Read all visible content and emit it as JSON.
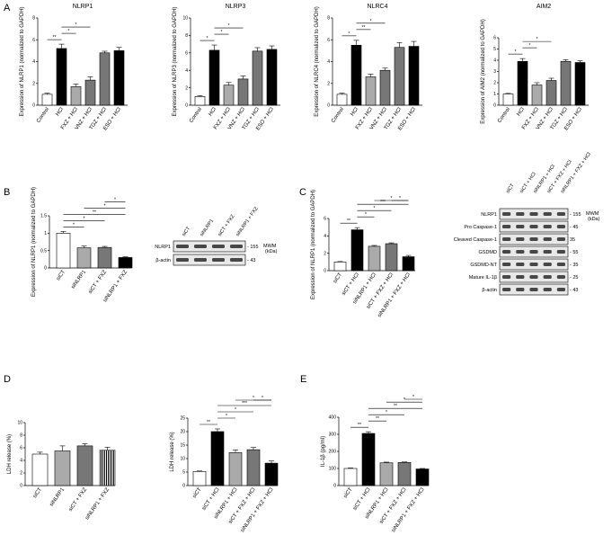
{
  "panels": {
    "A": "A",
    "B": "B",
    "C": "C",
    "D": "D",
    "E": "E"
  },
  "chart_data": [
    {
      "id": "A1",
      "type": "bar",
      "title": "NLRP1",
      "ylabel": "Expression of NLRP1 (normalized to GAPDH)",
      "ylim": [
        0,
        8
      ],
      "yticks": [
        0,
        2,
        4,
        6,
        8
      ],
      "categories": [
        "Control",
        "HCl",
        "FXZ + HCl",
        "VNZ + HCl",
        "TGZ + HCl",
        "ESO + HCl"
      ],
      "values": [
        1.0,
        5.2,
        1.7,
        2.3,
        4.8,
        5.0
      ],
      "errors": [
        0.1,
        0.4,
        0.25,
        0.3,
        0.15,
        0.3
      ],
      "significance": [
        [
          "Control",
          "HCl",
          "**"
        ],
        [
          "HCl",
          "FXZ + HCl",
          "*"
        ],
        [
          "HCl",
          "VNZ + HCl",
          "*"
        ]
      ]
    },
    {
      "id": "A2",
      "type": "bar",
      "title": "NLRP3",
      "ylabel": "Expression of NLRP3 (normalized to GAPDH)",
      "ylim": [
        0,
        10
      ],
      "yticks": [
        0,
        2,
        4,
        6,
        8,
        10
      ],
      "categories": [
        "Control",
        "HCl",
        "FXZ + HCl",
        "VNZ + HCl",
        "TGZ + HCl",
        "ESO + HCl"
      ],
      "values": [
        1.0,
        6.3,
        2.3,
        3.0,
        6.2,
        6.4
      ],
      "errors": [
        0.1,
        0.6,
        0.3,
        0.35,
        0.4,
        0.4
      ],
      "significance": [
        [
          "Control",
          "HCl",
          "*"
        ],
        [
          "HCl",
          "FXZ + HCl",
          "*"
        ],
        [
          "HCl",
          "VNZ + HCl",
          "*"
        ]
      ]
    },
    {
      "id": "A3",
      "type": "bar",
      "title": "NLRC4",
      "ylabel": "Expression of NLRC4 (normalized to GAPDH)",
      "ylim": [
        0,
        8
      ],
      "yticks": [
        0,
        2,
        4,
        6,
        8
      ],
      "categories": [
        "Control",
        "HCl",
        "FXZ + HCl",
        "VNZ + HCl",
        "TGZ + HCl",
        "ESO + HCl"
      ],
      "values": [
        1.0,
        5.5,
        2.6,
        3.2,
        5.3,
        5.4
      ],
      "errors": [
        0.1,
        0.45,
        0.25,
        0.2,
        0.45,
        0.45
      ],
      "significance": [
        [
          "Control",
          "HCl",
          "*"
        ],
        [
          "HCl",
          "FXZ + HCl",
          "**"
        ],
        [
          "HCl",
          "VNZ + HCl",
          "*"
        ]
      ]
    },
    {
      "id": "A4",
      "type": "bar",
      "title": "AIM2",
      "ylabel": "Expression of AIM2 (normalized to GAPDH)",
      "ylim": [
        0,
        6
      ],
      "yticks": [
        0,
        1,
        2,
        3,
        4,
        5,
        6
      ],
      "categories": [
        "Control",
        "HCl",
        "FXZ + HCl",
        "VNZ + HCl",
        "TGZ + HCl",
        "ESO + HCl"
      ],
      "values": [
        1.0,
        3.9,
        1.8,
        2.2,
        3.9,
        3.8
      ],
      "errors": [
        0.05,
        0.25,
        0.2,
        0.2,
        0.15,
        0.15
      ],
      "significance": [
        [
          "Control",
          "HCl",
          "*"
        ],
        [
          "HCl",
          "FXZ + HCl",
          "*"
        ],
        [
          "HCl",
          "VNZ + HCl",
          "*"
        ]
      ]
    },
    {
      "id": "B",
      "type": "bar",
      "title": "",
      "ylabel": "Expression of NLRP1 (normalized to GAPDH)",
      "ylim": [
        0,
        1.5
      ],
      "yticks": [
        0.0,
        0.5,
        1.0,
        1.5
      ],
      "categories": [
        "siCT",
        "siNLRP1",
        "siCT + FXZ",
        "siNLRP1 + FXZ"
      ],
      "values": [
        1.0,
        0.58,
        0.59,
        0.3
      ],
      "errors": [
        0.05,
        0.05,
        0.03,
        0.02
      ],
      "significance": [
        [
          "siCT",
          "siNLRP1",
          "*"
        ],
        [
          "siCT",
          "siCT + FXZ",
          "*"
        ],
        [
          "siCT",
          "siNLRP1 + FXZ",
          "**"
        ],
        [
          "siNLRP1",
          "siNLRP1 + FXZ",
          "*"
        ],
        [
          "siCT + FXZ",
          "siNLRP1 + FXZ",
          "*"
        ]
      ]
    },
    {
      "id": "C",
      "type": "bar",
      "title": "",
      "ylabel": "Expression of NLRP1 (normalized to GAPDH)",
      "ylim": [
        0,
        6
      ],
      "yticks": [
        0,
        2,
        4,
        6
      ],
      "categories": [
        "siCT",
        "siCT + HCl",
        "siNLRP1 + HCl",
        "siCT + FXZ + HCl",
        "siNLRP1 + FXZ + HCl"
      ],
      "values": [
        1.0,
        4.7,
        2.8,
        3.1,
        1.6
      ],
      "errors": [
        0.05,
        0.25,
        0.1,
        0.1,
        0.15
      ],
      "significance": [
        [
          "siCT",
          "siCT + HCl",
          "**"
        ],
        [
          "siCT + HCl",
          "siNLRP1 + HCl",
          "*"
        ],
        [
          "siCT + HCl",
          "siCT + FXZ + HCl",
          "*"
        ],
        [
          "siCT + HCl",
          "siNLRP1 + FXZ + HCl",
          "***"
        ],
        [
          "siNLRP1 + HCl",
          "siNLRP1 + FXZ + HCl",
          "*"
        ],
        [
          "siCT + FXZ + HCl",
          "siNLRP1 + FXZ + HCl",
          "*"
        ]
      ]
    },
    {
      "id": "D1",
      "type": "bar",
      "title": "",
      "ylabel": "LDH release (%)",
      "ylim": [
        0,
        10
      ],
      "yticks": [
        0,
        2,
        4,
        6,
        8,
        10
      ],
      "categories": [
        "siCT",
        "siNLRP1",
        "siCT + FXZ",
        "siNLRP1 + FXZ"
      ],
      "values": [
        5.0,
        5.5,
        6.3,
        5.6
      ],
      "errors": [
        0.3,
        0.8,
        0.35,
        0.5
      ],
      "significance": []
    },
    {
      "id": "D2",
      "type": "bar",
      "title": "",
      "ylabel": "LDH release (%)",
      "ylim": [
        0,
        25
      ],
      "yticks": [
        0,
        5,
        10,
        15,
        20,
        25
      ],
      "categories": [
        "siCT",
        "siCT + HCl",
        "siNLRP1 + HCl",
        "siCT + FXZ + HCl",
        "siNLRP1 + FXZ + HCl"
      ],
      "values": [
        5.2,
        20.0,
        12.2,
        13.3,
        8.3
      ],
      "errors": [
        0.2,
        1.0,
        1.0,
        0.8,
        0.8
      ],
      "significance": [
        [
          "siCT",
          "siCT + HCl",
          "**"
        ],
        [
          "siCT + HCl",
          "siNLRP1 + HCl",
          "*"
        ],
        [
          "siCT + HCl",
          "siCT + FXZ + HCl",
          "*"
        ],
        [
          "siCT + HCl",
          "siNLRP1 + FXZ + HCl",
          "***"
        ],
        [
          "siNLRP1 + HCl",
          "siNLRP1 + FXZ + HCl",
          "*"
        ],
        [
          "siCT + FXZ + HCl",
          "siNLRP1 + FXZ + HCl",
          "*"
        ]
      ]
    },
    {
      "id": "E",
      "type": "bar",
      "title": "",
      "ylabel": "IL-1β (pg/ml)",
      "ylim": [
        0,
        400
      ],
      "yticks": [
        0,
        100,
        200,
        300,
        400
      ],
      "categories": [
        "siCT",
        "siCT + HCl",
        "siNLRP1 + HCl",
        "siCT + FXZ + HCl",
        "siNLRP1 + FXZ + HCl"
      ],
      "values": [
        100,
        305,
        133,
        135,
        97
      ],
      "errors": [
        3,
        10,
        4,
        3,
        3
      ],
      "significance": [
        [
          "siCT",
          "siCT + HCl",
          "**"
        ],
        [
          "siCT + HCl",
          "siNLRP1 + HCl",
          "**"
        ],
        [
          "siCT + HCl",
          "siCT + FXZ + HCl",
          "*"
        ],
        [
          "siCT + HCl",
          "siNLRP1 + FXZ + HCl",
          "**"
        ],
        [
          "siNLRP1 + HCl",
          "siNLRP1 + FXZ + HCl",
          "*"
        ],
        [
          "siCT + FXZ + HCl",
          "siNLRP1 + FXZ + HCl",
          "*"
        ]
      ]
    }
  ],
  "blots": {
    "B": {
      "lanes": [
        "siCT",
        "siNLRP1",
        "siCT + FXZ",
        "siNLRP1 + FXZ"
      ],
      "rows": [
        "NLRP1",
        "β-actin"
      ],
      "markers": [
        "- 155",
        "- 43"
      ],
      "mw": "MWM",
      "kda": "(kDa)"
    },
    "C": {
      "lanes": [
        "siCT",
        "siCT + HCl",
        "siNLRP1 + HCl",
        "siCT + FXZ + HCl",
        "siNLRP1 + FXZ + HCl"
      ],
      "rows": [
        "NLRP1",
        "Pro Caspase-1",
        "Cleaved Caspase-1",
        "GSDMD",
        "GSDMD-NT",
        "Mature IL-1β",
        "β-actin"
      ],
      "markers": [
        "- 155",
        "- 45",
        "35",
        "- 55",
        "- 35",
        "- 25",
        "- 43"
      ],
      "mw": "MWM",
      "kda": "(kDa)"
    }
  },
  "colors": {
    "white": "#ffffff",
    "black": "#000000",
    "gray_light": "#aaaaaa",
    "gray_mid": "#777777",
    "gray_dark": "#555555",
    "blot_bg": "#e8e8e8",
    "band": "#2a2a2a"
  }
}
